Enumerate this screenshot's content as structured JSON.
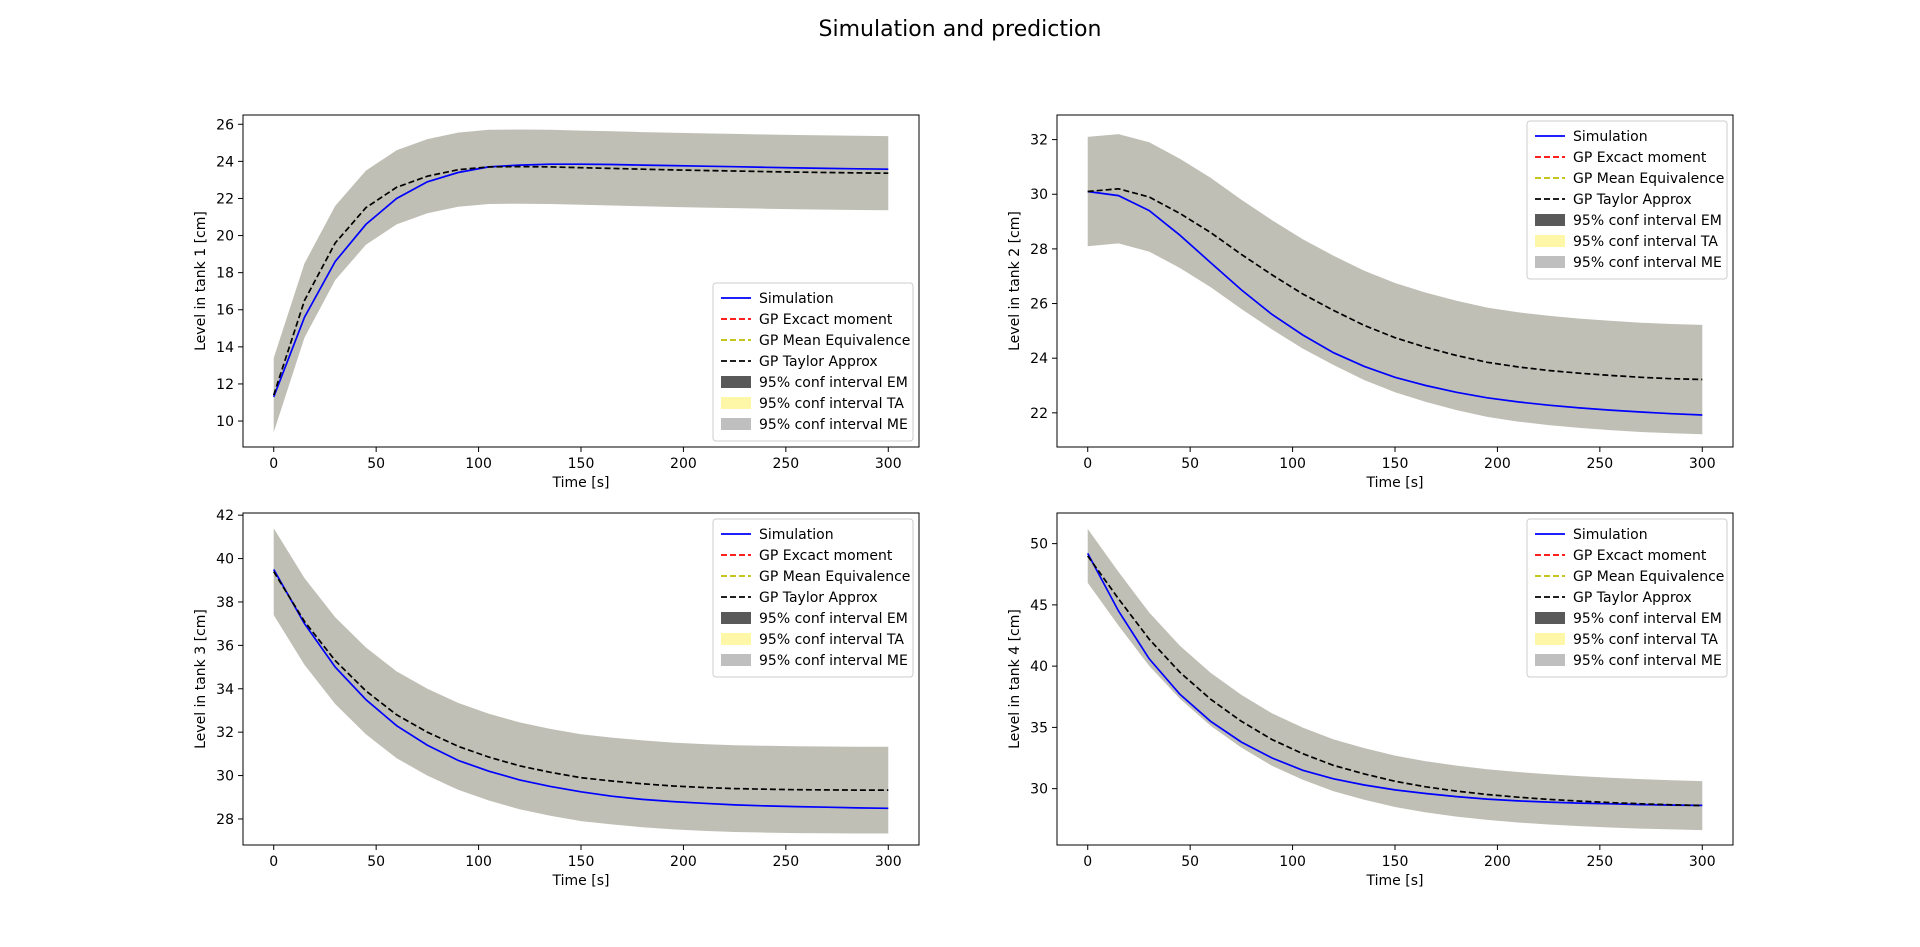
{
  "figure": {
    "title": "Simulation and prediction"
  },
  "legend_labels": {
    "simulation": "Simulation",
    "gp_em": "GP Excact moment",
    "gp_me": "GP Mean Equivalence",
    "gp_ta": "GP Taylor Approx",
    "ci_em": "95% conf interval EM",
    "ci_ta": "95% conf interval TA",
    "ci_me": "95% conf interval ME"
  },
  "colors": {
    "simulation": "#0000ff",
    "gp_em": "#ff0000",
    "gp_me": "#bfbf00",
    "gp_ta": "#000000",
    "ci_em": "#595959",
    "ci_ta": "#fff7a8",
    "ci_me": "#bfbfbf",
    "band_overlap": "#c0bfb5"
  },
  "chart_data": [
    {
      "type": "line",
      "xlabel": "Time [s]",
      "ylabel": "Level in tank 1 [cm]",
      "xlim": [
        -15,
        315
      ],
      "ylim": [
        8.6,
        26.5
      ],
      "xticks": [
        0,
        50,
        100,
        150,
        200,
        250,
        300
      ],
      "yticks": [
        10,
        12,
        14,
        16,
        18,
        20,
        22,
        24,
        26
      ],
      "legend_position": "lower-right",
      "x": [
        0,
        15,
        30,
        45,
        60,
        75,
        90,
        105,
        120,
        135,
        150,
        165,
        180,
        195,
        210,
        225,
        240,
        255,
        270,
        285,
        300
      ],
      "series": [
        {
          "name": "Simulation",
          "style": "solid",
          "color_key": "simulation",
          "values": [
            11.3,
            15.6,
            18.6,
            20.6,
            22.0,
            22.9,
            23.4,
            23.7,
            23.8,
            23.85,
            23.85,
            23.83,
            23.8,
            23.77,
            23.74,
            23.71,
            23.68,
            23.65,
            23.62,
            23.6,
            23.58
          ]
        },
        {
          "name": "GP Taylor Approx",
          "style": "dashed",
          "color_key": "gp_ta",
          "values": [
            11.4,
            16.5,
            19.6,
            21.5,
            22.6,
            23.2,
            23.55,
            23.7,
            23.72,
            23.7,
            23.66,
            23.62,
            23.58,
            23.54,
            23.51,
            23.48,
            23.45,
            23.42,
            23.4,
            23.38,
            23.36
          ]
        }
      ],
      "band": {
        "center_series": "GP Taylor Approx",
        "halfwidth": 2.0
      }
    },
    {
      "type": "line",
      "xlabel": "Time [s]",
      "ylabel": "Level in tank 2 [cm]",
      "xlim": [
        -15,
        315
      ],
      "ylim": [
        20.75,
        32.9
      ],
      "xticks": [
        0,
        50,
        100,
        150,
        200,
        250,
        300
      ],
      "yticks": [
        22,
        24,
        26,
        28,
        30,
        32
      ],
      "legend_position": "upper-right",
      "x": [
        0,
        15,
        30,
        45,
        60,
        75,
        90,
        105,
        120,
        135,
        150,
        165,
        180,
        195,
        210,
        225,
        240,
        255,
        270,
        285,
        300
      ],
      "series": [
        {
          "name": "Simulation",
          "style": "solid",
          "color_key": "simulation",
          "values": [
            30.1,
            29.95,
            29.4,
            28.5,
            27.5,
            26.5,
            25.6,
            24.85,
            24.2,
            23.7,
            23.3,
            23.0,
            22.75,
            22.55,
            22.4,
            22.28,
            22.18,
            22.1,
            22.03,
            21.97,
            21.92
          ]
        },
        {
          "name": "GP Taylor Approx",
          "style": "dashed",
          "color_key": "gp_ta",
          "values": [
            30.1,
            30.2,
            29.9,
            29.3,
            28.6,
            27.8,
            27.05,
            26.35,
            25.75,
            25.2,
            24.75,
            24.4,
            24.1,
            23.85,
            23.68,
            23.55,
            23.45,
            23.37,
            23.3,
            23.25,
            23.22
          ]
        }
      ],
      "band": {
        "center_series": "GP Taylor Approx",
        "halfwidth": 2.0
      }
    },
    {
      "type": "line",
      "xlabel": "Time [s]",
      "ylabel": "Level in tank 3 [cm]",
      "xlim": [
        -15,
        315
      ],
      "ylim": [
        26.8,
        42.1
      ],
      "xticks": [
        0,
        50,
        100,
        150,
        200,
        250,
        300
      ],
      "yticks": [
        28,
        30,
        32,
        34,
        36,
        38,
        40,
        42
      ],
      "legend_position": "upper-right",
      "x": [
        0,
        15,
        30,
        45,
        60,
        75,
        90,
        105,
        120,
        135,
        150,
        165,
        180,
        195,
        210,
        225,
        240,
        255,
        270,
        285,
        300
      ],
      "series": [
        {
          "name": "Simulation",
          "style": "solid",
          "color_key": "simulation",
          "values": [
            39.5,
            37.0,
            35.0,
            33.5,
            32.3,
            31.4,
            30.7,
            30.2,
            29.8,
            29.5,
            29.25,
            29.05,
            28.9,
            28.8,
            28.72,
            28.65,
            28.6,
            28.57,
            28.54,
            28.51,
            28.49
          ]
        },
        {
          "name": "GP Taylor Approx",
          "style": "dashed",
          "color_key": "gp_ta",
          "values": [
            39.4,
            37.1,
            35.3,
            33.9,
            32.8,
            32.0,
            31.35,
            30.85,
            30.45,
            30.15,
            29.9,
            29.75,
            29.62,
            29.52,
            29.45,
            29.4,
            29.37,
            29.35,
            29.34,
            29.33,
            29.33
          ]
        }
      ],
      "band": {
        "center_series": "GP Taylor Approx",
        "halfwidth": 2.0
      }
    },
    {
      "type": "line",
      "xlabel": "Time [s]",
      "ylabel": "Level in tank 4 [cm]",
      "xlim": [
        -15,
        315
      ],
      "ylim": [
        25.4,
        52.5
      ],
      "xticks": [
        0,
        50,
        100,
        150,
        200,
        250,
        300
      ],
      "yticks": [
        30,
        35,
        40,
        45,
        50
      ],
      "legend_position": "upper-right",
      "x": [
        0,
        15,
        30,
        45,
        60,
        75,
        90,
        105,
        120,
        135,
        150,
        165,
        180,
        195,
        210,
        225,
        240,
        255,
        270,
        285,
        300
      ],
      "series": [
        {
          "name": "Simulation",
          "style": "solid",
          "color_key": "simulation",
          "values": [
            49.2,
            44.5,
            40.6,
            37.7,
            35.5,
            33.8,
            32.5,
            31.5,
            30.8,
            30.3,
            29.9,
            29.6,
            29.35,
            29.15,
            29.0,
            28.9,
            28.82,
            28.76,
            28.7,
            28.66,
            28.63
          ]
        },
        {
          "name": "GP Taylor Approx",
          "style": "dashed",
          "color_key": "gp_ta",
          "values": [
            49.0,
            45.5,
            42.2,
            39.5,
            37.3,
            35.5,
            34.0,
            32.85,
            31.9,
            31.2,
            30.6,
            30.15,
            29.8,
            29.52,
            29.3,
            29.12,
            28.98,
            28.86,
            28.76,
            28.68,
            28.62
          ]
        }
      ],
      "band": {
        "center_series": "GP Taylor Approx",
        "halfwidth_start": 2.2,
        "halfwidth_end": 2.0
      }
    }
  ]
}
